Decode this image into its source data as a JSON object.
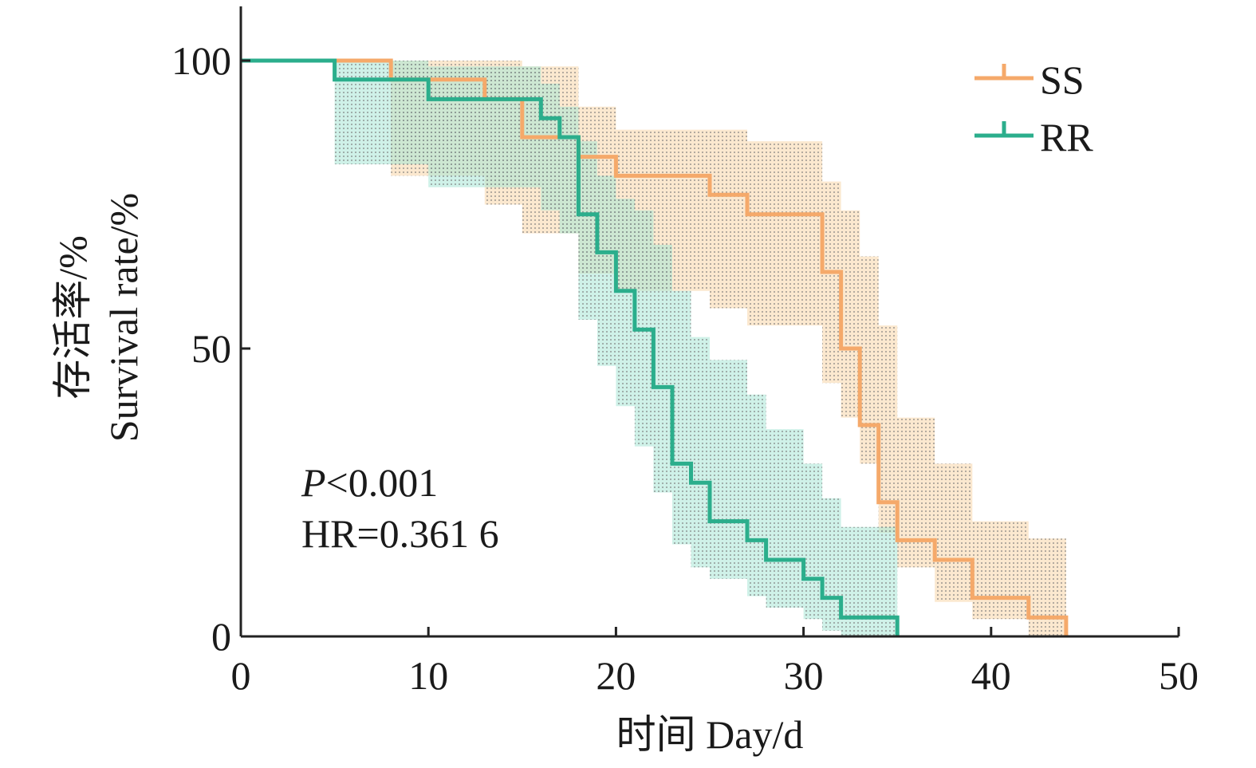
{
  "chart_data": {
    "type": "line",
    "title": "",
    "xlabel": "时间 Day/d",
    "ylabel_cn": "存活率/%",
    "ylabel_en": "Survival rate/%",
    "xlim": [
      0,
      50
    ],
    "ylim": [
      0,
      100
    ],
    "xticks": [
      "0",
      "10",
      "20",
      "30",
      "40",
      "50"
    ],
    "yticks": [
      "0",
      "50",
      "100"
    ],
    "grid": false,
    "legend_position": "top-right",
    "annotations": {
      "p_value_symbol": "P",
      "p_value_rest": "<0.001",
      "hazard_ratio": "HR=0.361 6"
    },
    "series": [
      {
        "name": "SS",
        "color": "#F5A96A",
        "band_color": "#F7D6A8",
        "x": [
          0,
          8,
          13,
          15,
          18,
          20,
          25,
          27,
          31,
          32,
          33,
          34,
          35,
          37,
          39,
          42,
          44
        ],
        "y": [
          100,
          96.7,
          93.3,
          86.7,
          83.3,
          80,
          76.7,
          73.3,
          63.3,
          50,
          36.7,
          23.3,
          16.7,
          13.3,
          6.7,
          3.3,
          0
        ],
        "upper": [
          100,
          100,
          100,
          99,
          92,
          88,
          88,
          86,
          79,
          74,
          66,
          54,
          38,
          30,
          20,
          17,
          14
        ],
        "lower": [
          100,
          80,
          75,
          70,
          63,
          60,
          57,
          54,
          44,
          38,
          30,
          18,
          12,
          6,
          3,
          0,
          0
        ]
      },
      {
        "name": "RR",
        "color": "#2BAE8C",
        "band_color": "#A8E6D6",
        "x": [
          0,
          5,
          8,
          10,
          13,
          16,
          17,
          18,
          19,
          20,
          21,
          22,
          23,
          24,
          25,
          27,
          28,
          30,
          31,
          32,
          35
        ],
        "y": [
          100,
          96.7,
          96.7,
          93.3,
          93.3,
          90,
          86.7,
          73.3,
          66.7,
          60,
          53.3,
          43.3,
          30,
          26.7,
          20,
          16.7,
          13.3,
          10,
          6.7,
          3.3,
          0
        ],
        "upper": [
          100,
          100,
          100,
          99,
          99,
          96,
          92,
          86,
          80,
          76,
          74,
          68,
          60,
          52,
          48,
          42,
          36,
          30,
          24,
          19,
          14
        ],
        "lower": [
          100,
          82,
          82,
          78,
          78,
          74,
          70,
          55,
          47,
          40,
          33,
          25,
          16,
          12,
          10,
          7,
          5,
          3,
          1,
          0,
          0
        ]
      }
    ]
  }
}
